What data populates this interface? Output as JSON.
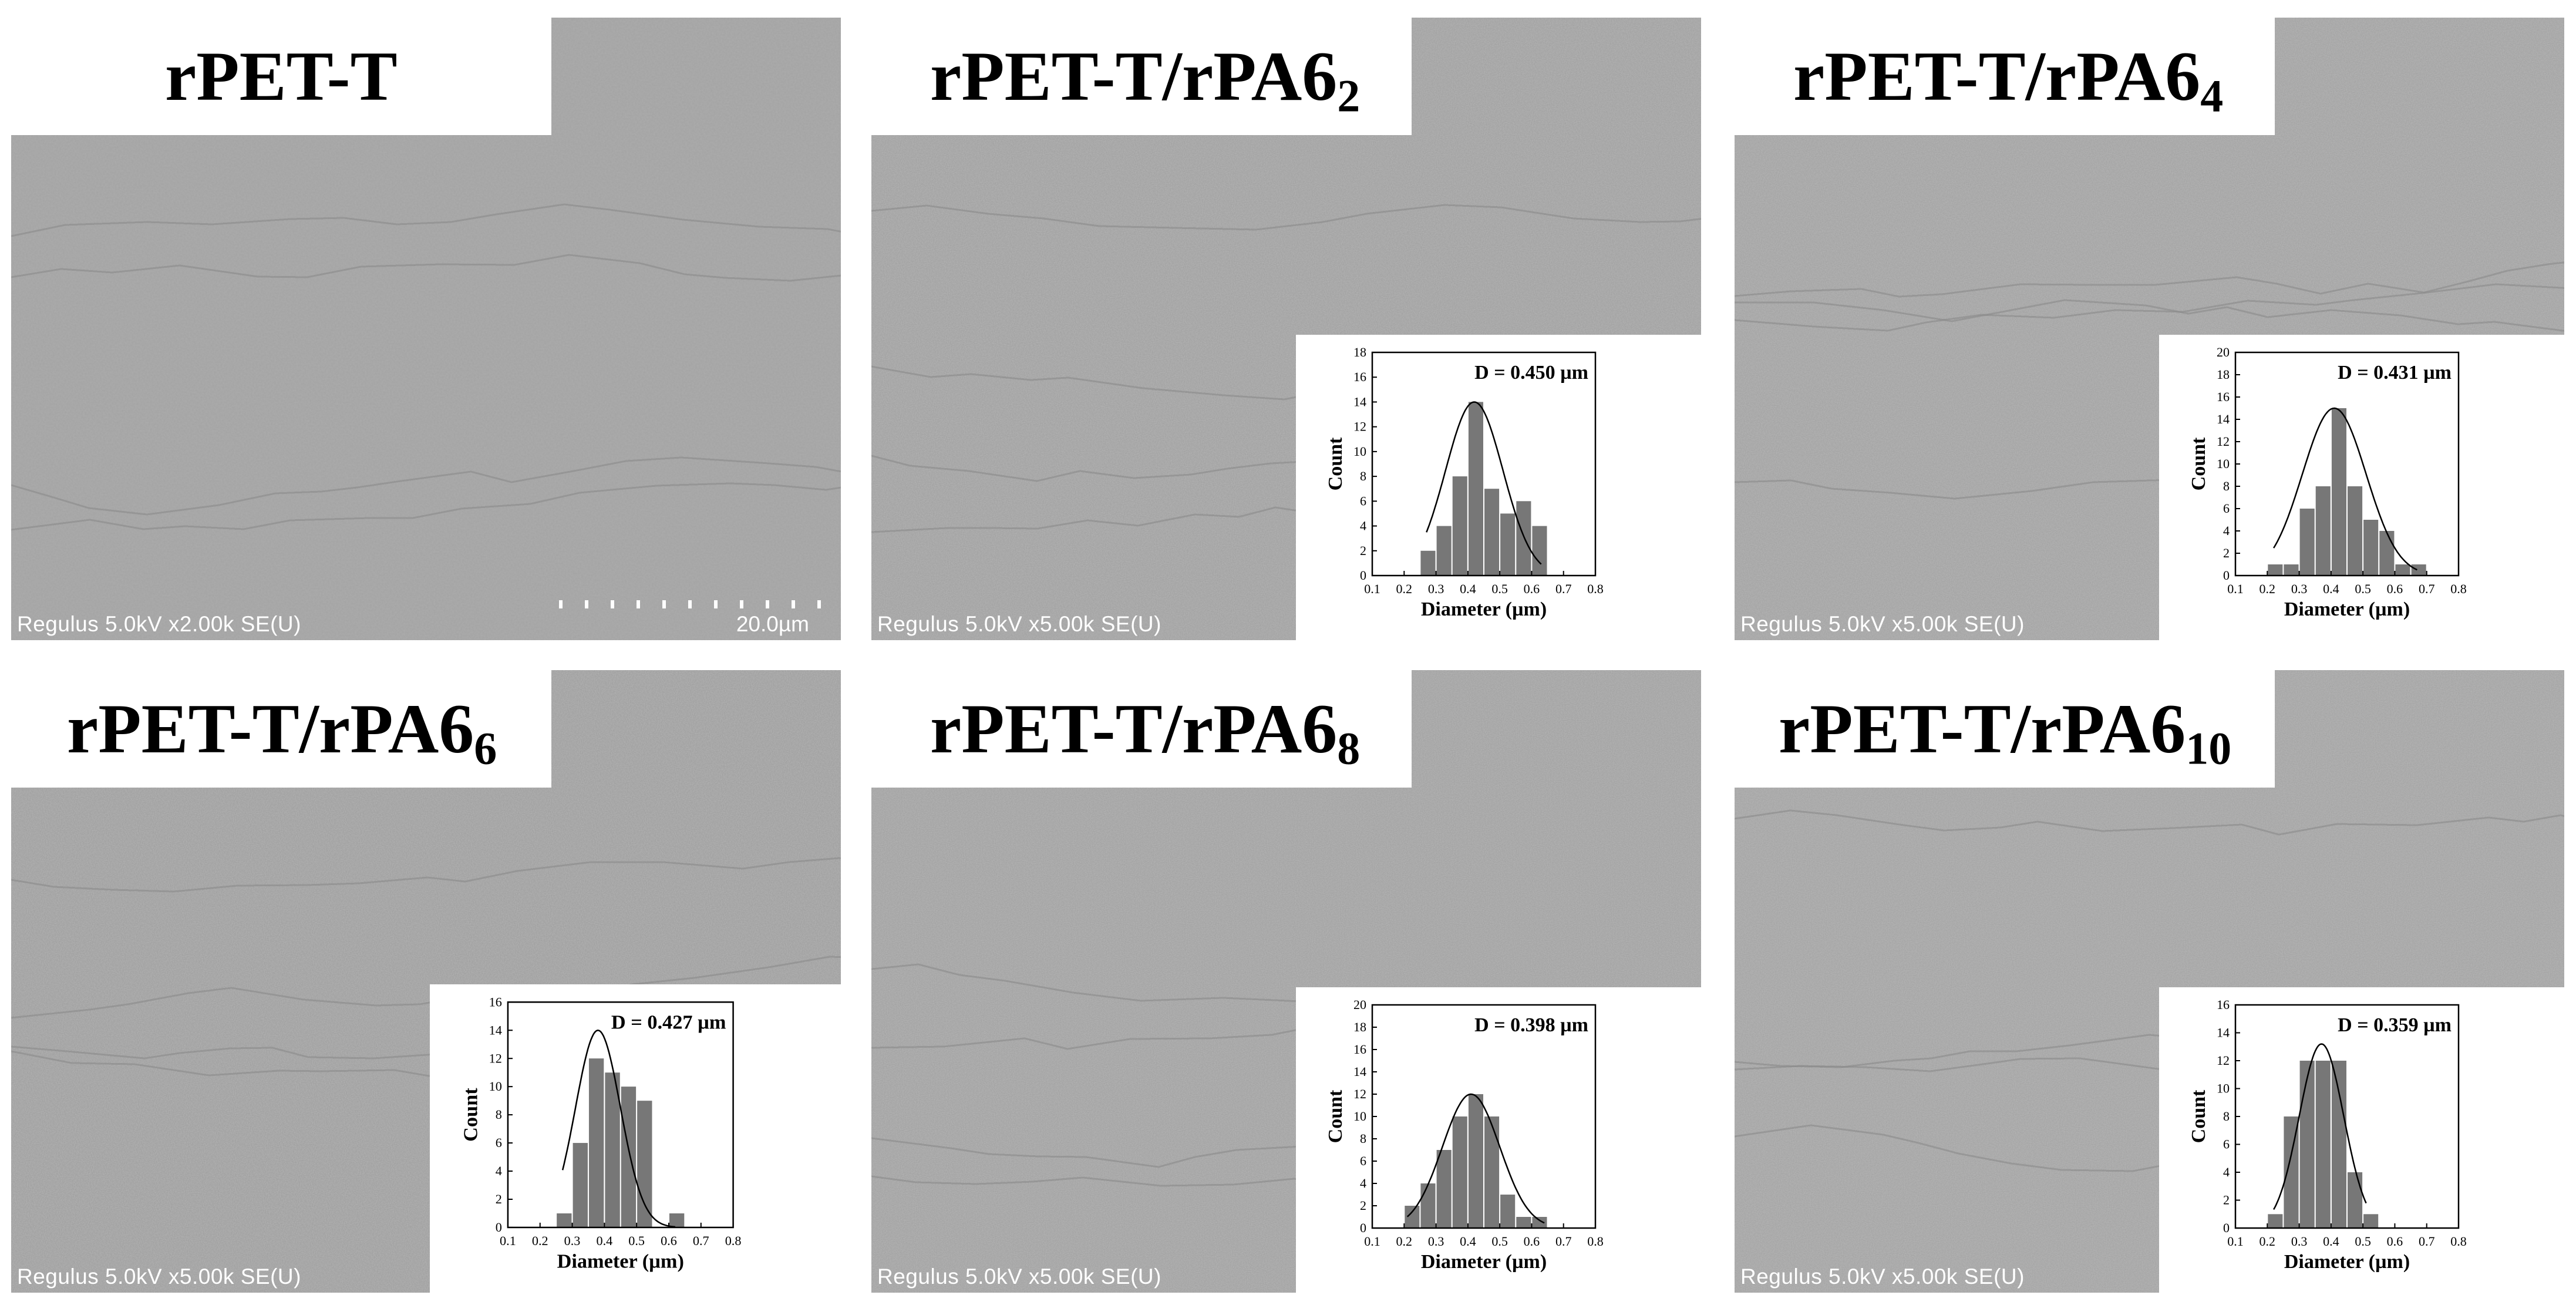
{
  "figure": {
    "panels": [
      {
        "id": "p1",
        "title_main": "rPET-T",
        "title_sub": "",
        "sem_caption": "Regulus 5.0kV x2.00k SE(U)",
        "scale_label": "20.0µm",
        "has_inset": false
      },
      {
        "id": "p2",
        "title_main": "rPET-T/rPA6",
        "title_sub": "2",
        "sem_caption": "Regulus 5.0kV x5.00k SE(U)",
        "has_inset": true,
        "chart_data": {
          "type": "bar",
          "annotation": "D = 0.450 µm",
          "xlabel": "Diameter (µm)",
          "ylabel": "Count",
          "xlim": [
            0.1,
            0.8
          ],
          "ylim": [
            0,
            18
          ],
          "xticks": [
            "0.1",
            "0.2",
            "0.3",
            "0.4",
            "0.5",
            "0.6",
            "0.7",
            "0.8"
          ],
          "yticks": [
            "0",
            "2",
            "4",
            "6",
            "8",
            "10",
            "12",
            "14",
            "16",
            "18"
          ],
          "bar_width": 0.05,
          "bins": [
            0.275,
            0.325,
            0.375,
            0.425,
            0.475,
            0.525,
            0.575,
            0.625
          ],
          "values": [
            2,
            4,
            8,
            14,
            7,
            5,
            6,
            4
          ],
          "fit_curve": {
            "mean": 0.42,
            "sigma": 0.09,
            "peak": 14,
            "x_range": [
              0.27,
              0.63
            ]
          }
        }
      },
      {
        "id": "p3",
        "title_main": "rPET-T/rPA6",
        "title_sub": "4",
        "sem_caption": "Regulus 5.0kV x5.00k SE(U)",
        "has_inset": true,
        "chart_data": {
          "type": "bar",
          "annotation": "D = 0.431 µm",
          "xlabel": "Diameter (µm)",
          "ylabel": "Count",
          "xlim": [
            0.1,
            0.8
          ],
          "ylim": [
            0,
            20
          ],
          "xticks": [
            "0.1",
            "0.2",
            "0.3",
            "0.4",
            "0.5",
            "0.6",
            "0.7",
            "0.8"
          ],
          "yticks": [
            "0",
            "2",
            "4",
            "6",
            "8",
            "10",
            "12",
            "14",
            "16",
            "18",
            "20"
          ],
          "bar_width": 0.05,
          "bins": [
            0.225,
            0.275,
            0.325,
            0.375,
            0.425,
            0.475,
            0.525,
            0.575,
            0.625,
            0.675
          ],
          "values": [
            1,
            1,
            6,
            8,
            15,
            8,
            5,
            4,
            1,
            1
          ],
          "fit_curve": {
            "mean": 0.41,
            "sigma": 0.1,
            "peak": 15,
            "x_range": [
              0.22,
              0.67
            ]
          }
        }
      },
      {
        "id": "p4",
        "title_main": "rPET-T/rPA6",
        "title_sub": "6",
        "sem_caption": "Regulus 5.0kV x5.00k SE(U)",
        "has_inset": true,
        "chart_data": {
          "type": "bar",
          "annotation": "D = 0.427 µm",
          "xlabel": "Diameter (µm)",
          "ylabel": "Count",
          "xlim": [
            0.1,
            0.8
          ],
          "ylim": [
            0,
            16
          ],
          "xticks": [
            "0.1",
            "0.2",
            "0.3",
            "0.4",
            "0.5",
            "0.6",
            "0.7",
            "0.8"
          ],
          "yticks": [
            "0",
            "2",
            "4",
            "6",
            "8",
            "10",
            "12",
            "14",
            "16"
          ],
          "bar_width": 0.05,
          "bins": [
            0.275,
            0.325,
            0.375,
            0.425,
            0.475,
            0.525,
            0.575,
            0.625
          ],
          "values": [
            1,
            6,
            12,
            11,
            10,
            9,
            0,
            1
          ],
          "fit_curve": {
            "mean": 0.38,
            "sigma": 0.07,
            "peak": 14,
            "x_range": [
              0.27,
              0.62
            ]
          }
        }
      },
      {
        "id": "p5",
        "title_main": "rPET-T/rPA6",
        "title_sub": "8",
        "sem_caption": "Regulus 5.0kV x5.00k SE(U)",
        "has_inset": true,
        "chart_data": {
          "type": "bar",
          "annotation": "D = 0.398 µm",
          "xlabel": "Diameter (µm)",
          "ylabel": "Count",
          "xlim": [
            0.1,
            0.8
          ],
          "ylim": [
            0,
            20
          ],
          "xticks": [
            "0.1",
            "0.2",
            "0.3",
            "0.4",
            "0.5",
            "0.6",
            "0.7",
            "0.8"
          ],
          "yticks": [
            "0",
            "2",
            "4",
            "6",
            "8",
            "10",
            "12",
            "14",
            "16",
            "18",
            "20"
          ],
          "bar_width": 0.05,
          "bins": [
            0.225,
            0.275,
            0.325,
            0.375,
            0.425,
            0.475,
            0.525,
            0.575,
            0.625
          ],
          "values": [
            2,
            4,
            7,
            10,
            12,
            10,
            3,
            1,
            1
          ],
          "fit_curve": {
            "mean": 0.41,
            "sigma": 0.09,
            "peak": 12,
            "x_range": [
              0.21,
              0.64
            ]
          }
        }
      },
      {
        "id": "p6",
        "title_main": "rPET-T/rPA6",
        "title_sub": "10",
        "sem_caption": "Regulus 5.0kV x5.00k SE(U)",
        "has_inset": true,
        "chart_data": {
          "type": "bar",
          "annotation": "D = 0.359 µm",
          "xlabel": "Diameter (µm)",
          "ylabel": "Count",
          "xlim": [
            0.1,
            0.8
          ],
          "ylim": [
            0,
            16
          ],
          "xticks": [
            "0.1",
            "0.2",
            "0.3",
            "0.4",
            "0.5",
            "0.6",
            "0.7",
            "0.8"
          ],
          "yticks": [
            "0",
            "2",
            "4",
            "6",
            "8",
            "10",
            "12",
            "14",
            "16"
          ],
          "bar_width": 0.05,
          "bins": [
            0.225,
            0.275,
            0.325,
            0.375,
            0.425,
            0.475,
            0.525
          ],
          "values": [
            1,
            8,
            12,
            12,
            12,
            4,
            1
          ],
          "fit_curve": {
            "mean": 0.37,
            "sigma": 0.07,
            "peak": 13.2,
            "x_range": [
              0.22,
              0.51
            ]
          }
        }
      }
    ]
  }
}
